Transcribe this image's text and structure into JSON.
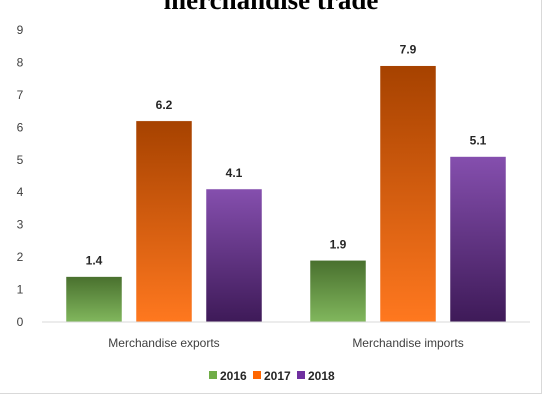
{
  "chart_data": {
    "type": "bar",
    "title": "merchandise trade",
    "xlabel": "",
    "ylabel": "",
    "categories": [
      "Merchandise exports",
      "Merchandise imports"
    ],
    "series": [
      {
        "name": "2016",
        "values": [
          1.4,
          1.9
        ],
        "color": "#70ad47"
      },
      {
        "name": "2017",
        "values": [
          6.2,
          7.9
        ],
        "color": "#ff6600"
      },
      {
        "name": "2018",
        "values": [
          4.1,
          5.1
        ],
        "color": "#7030a0"
      }
    ],
    "ylim": [
      0,
      9
    ],
    "yticks": [
      0,
      1,
      2,
      3,
      4,
      5,
      6,
      7,
      8,
      9
    ],
    "data_labels": true,
    "grid": false,
    "legend": "bottom"
  }
}
